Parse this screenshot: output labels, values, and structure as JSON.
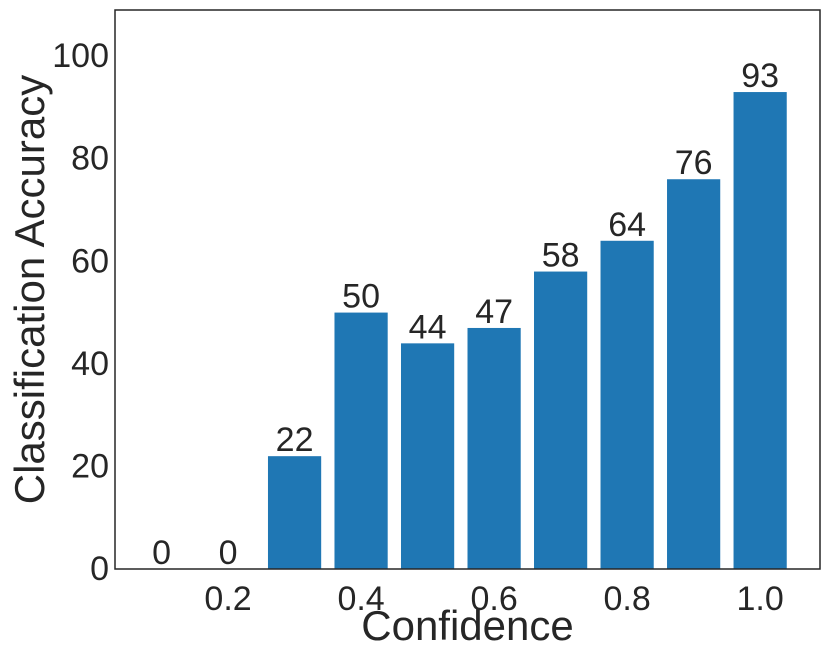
{
  "chart_data": {
    "type": "bar",
    "x": [
      0.1,
      0.2,
      0.3,
      0.4,
      0.5,
      0.6,
      0.7,
      0.8,
      0.9,
      1.0
    ],
    "values": [
      0,
      0,
      22,
      50,
      44,
      47,
      58,
      64,
      76,
      93
    ],
    "value_labels": [
      "0",
      "0",
      "22",
      "50",
      "44",
      "47",
      "58",
      "64",
      "76",
      "93"
    ],
    "xlabel": "Confidence",
    "ylabel": "Classification Accuracy",
    "xlim": [
      0.03,
      1.09
    ],
    "ylim": [
      0,
      109
    ],
    "xticks": [
      0.2,
      0.4,
      0.6,
      0.8,
      1.0
    ],
    "xtick_labels": [
      "0.2",
      "0.4",
      "0.6",
      "0.8",
      "1.0"
    ],
    "yticks": [
      0,
      20,
      40,
      60,
      80,
      100
    ],
    "ytick_labels": [
      "0",
      "20",
      "40",
      "60",
      "80",
      "100"
    ],
    "grid": false,
    "legend": "none",
    "bar_color": "#1f77b4"
  }
}
